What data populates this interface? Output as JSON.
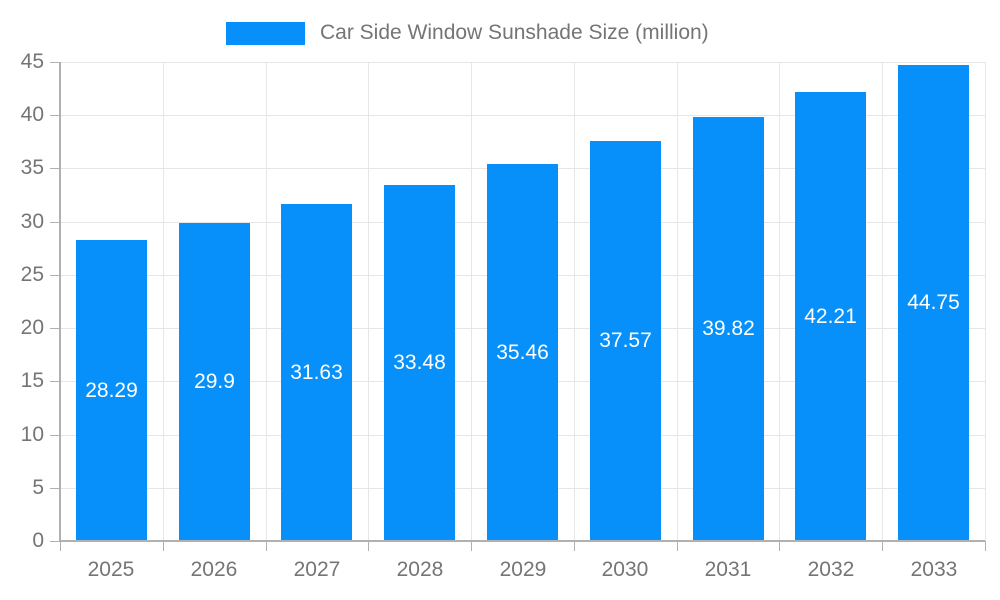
{
  "legend": {
    "label": "Car Side Window Sunshade Size (million)"
  },
  "colors": {
    "bar": "#0890FA",
    "grid": "#E6E6E6",
    "axis_line": "#B0B0B0",
    "axis_text": "#757575",
    "value_text": "#FFFFFF"
  },
  "chart_data": {
    "type": "bar",
    "title": "Car Side Window Sunshade Size (million)",
    "categories": [
      "2025",
      "2026",
      "2027",
      "2028",
      "2029",
      "2030",
      "2031",
      "2032",
      "2033"
    ],
    "values": [
      28.29,
      29.9,
      31.63,
      33.48,
      35.46,
      37.57,
      39.82,
      42.21,
      44.75
    ],
    "value_labels": [
      "28.29",
      "29.9",
      "31.63",
      "33.48",
      "35.46",
      "37.57",
      "39.82",
      "42.21",
      "44.75"
    ],
    "xlabel": "",
    "ylabel": "",
    "ylim": [
      0,
      45
    ],
    "yticks": [
      0,
      5,
      10,
      15,
      20,
      25,
      30,
      35,
      40,
      45
    ],
    "grid": true,
    "legend_position": "top"
  }
}
